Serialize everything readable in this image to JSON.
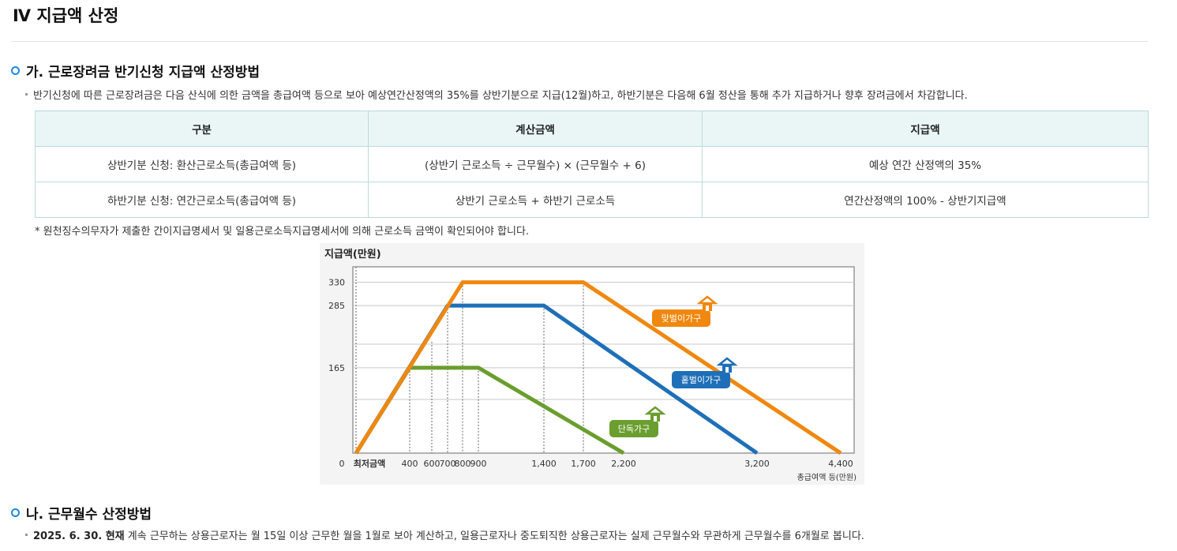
{
  "page": {
    "title": "Ⅳ 지급액 산정"
  },
  "section_a": {
    "heading": "가. 근로장려금 반기신청 지급액 산정방법",
    "desc": "반기신청에 따른 근로장려금은 다음 산식에 의한 금액을 총급여액 등으로 보아 예상연간산정액의 35%를 상반기분으로 지급(12월)하고, 하반기분은 다음해 6월 정산을 통해 추가 지급하거나 향후 장려금에서 차감합니다."
  },
  "table": {
    "headers": [
      "구분",
      "계산금액",
      "지급액"
    ],
    "rows": [
      [
        "상반기분 신청: 환산근로소득(총급여액 등)",
        "(상반기 근로소득 ÷ 근무월수) × (근무월수 + 6)",
        "예상 연간 산정액의 35%"
      ],
      [
        "하반기분 신청: 연간근로소득(총급여액 등)",
        "상반기 근로소득 + 하반기 근로소득",
        "연간산정액의 100% - 상반기지급액"
      ]
    ]
  },
  "note": "* 원천징수의무자가 제출한 간이지급명세서 및 일용근로소득지급명세서에 의해 근로소득 금액이 확인되어야 합니다.",
  "chart_data": {
    "type": "line",
    "ylabel": "지급액(만원)",
    "xlabel": "총급여액 등(만원)",
    "x_ticks": [
      "0",
      "최저금액",
      "400",
      "600",
      "700",
      "800",
      "900",
      "1,400",
      "1,700",
      "2,200",
      "3,200",
      "4,400"
    ],
    "y_ticks": [
      "330",
      "285",
      "165"
    ],
    "grid": true,
    "series": [
      {
        "name": "맞벌이가구",
        "color": "#f0880f",
        "points": [
          [
            0,
            0
          ],
          [
            800,
            330
          ],
          [
            1700,
            330
          ],
          [
            4400,
            0
          ]
        ]
      },
      {
        "name": "홑벌이가구",
        "color": "#1e6fb8",
        "points": [
          [
            0,
            0
          ],
          [
            700,
            285
          ],
          [
            1400,
            285
          ],
          [
            3200,
            0
          ]
        ]
      },
      {
        "name": "단독가구",
        "color": "#6a9e2e",
        "points": [
          [
            0,
            0
          ],
          [
            400,
            165
          ],
          [
            900,
            165
          ],
          [
            2200,
            0
          ]
        ]
      }
    ]
  },
  "section_b": {
    "heading": "나. 근무월수 산정방법",
    "date_bold": "2025. 6. 30. 현재",
    "desc": " 계속 근무하는 상용근로자는 월 15일 이상 근무한 월을 1월로 보아 계산하고, 일용근로자나 중도퇴직한 상용근로자는 실제 근무월수와 무관하게 근무월수를 6개월로 봅니다."
  }
}
